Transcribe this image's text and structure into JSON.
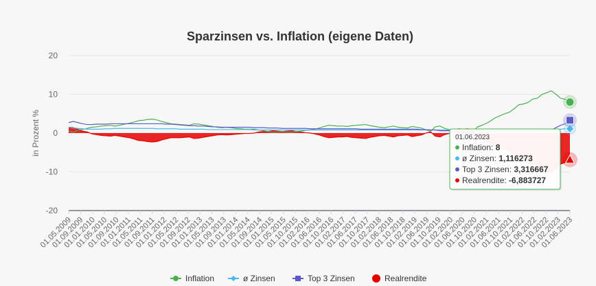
{
  "chart_data": {
    "type": "line",
    "title": "Sparzinsen vs. Inflation (eigene Daten)",
    "ylabel": "in Prozent %",
    "ylim": [
      -20,
      20
    ],
    "y_ticks": [
      "20",
      "10",
      "0",
      "-10",
      "-20"
    ],
    "x_tick_labels": [
      "01.05.2009",
      "01.09.2009",
      "01.01.2010",
      "01.05.2010",
      "01.09.2010",
      "01.01.2011",
      "01.05.2011",
      "01.09.2011",
      "01.01.2012",
      "01.05.2012",
      "01.09.2012",
      "01.01.2013",
      "01.05.2013",
      "01.09.2013",
      "01.01.2014",
      "01.05.2014",
      "01.09.2014",
      "01.01.2015",
      "01.05.2015",
      "01.10.2015",
      "01.02.2016",
      "01.06.2016",
      "01.10.2016",
      "01.02.2017",
      "01.06.2017",
      "01.10.2017",
      "01.02.2018",
      "01.06.2018",
      "01.10.2018",
      "01.02.2019",
      "01.06.2019",
      "01.10.2019",
      "01.02.2020",
      "01.06.2020",
      "01.10.2020",
      "01.02.2021",
      "01.06.2021",
      "01.10.2021",
      "01.02.2022",
      "01.06.2022",
      "01.10.2022",
      "01.02.2023",
      "01.06.2023"
    ],
    "grid": true,
    "legend_position": "bottom",
    "series": [
      {
        "name": "Inflation",
        "color": "#4caf50",
        "kind": "line",
        "marker": "circle",
        "values": [
          0.5,
          0.2,
          0.8,
          0.9,
          1.2,
          1.5,
          1.6,
          1.8,
          1.9,
          2.0,
          1.8,
          2.0,
          2.3,
          2.5,
          2.8,
          3.2,
          3.3,
          3.5,
          3.6,
          3.4,
          3.0,
          2.7,
          2.4,
          2.3,
          2.2,
          2.1,
          2.0,
          2.4,
          2.3,
          2.1,
          1.9,
          1.7,
          1.5,
          1.4,
          1.5,
          1.4,
          1.2,
          1.1,
          1.0,
          1.0,
          1.0,
          0.8,
          0.6,
          0.4,
          0.2,
          0.3,
          0.4,
          0.3,
          0.2,
          0.4,
          0.5,
          0.7,
          0.8,
          1.0,
          1.3,
          1.7,
          2.0,
          1.9,
          1.8,
          1.8,
          1.7,
          1.9,
          2.0,
          2.1,
          2.2,
          1.9,
          1.7,
          1.5,
          1.4,
          1.6,
          1.8,
          1.5,
          1.4,
          1.3,
          1.7,
          1.5,
          1.3,
          0.8,
          0.5,
          1.6,
          1.8,
          1.2,
          0.9,
          0.5,
          -0.3,
          -0.2,
          -0.3,
          0.0,
          1.5,
          2.0,
          2.5,
          3.2,
          4.0,
          4.5,
          5.0,
          5.4,
          6.3,
          7.3,
          7.5,
          7.9,
          8.8,
          9.0,
          10.0,
          10.4,
          10.9,
          10.0,
          9.0,
          8.7,
          8.0
        ]
      },
      {
        "name": "ø Zinsen",
        "color": "#4db8f0",
        "kind": "line",
        "marker": "diamond",
        "values": [
          1.5,
          1.3,
          1.2,
          1.1,
          1.0,
          1.0,
          1.0,
          1.0,
          1.1,
          1.1,
          1.2,
          1.2,
          1.2,
          1.2,
          1.2,
          1.2,
          1.2,
          1.2,
          1.2,
          1.1,
          1.1,
          1.1,
          1.1,
          1.1,
          1.0,
          1.0,
          1.0,
          1.0,
          1.0,
          1.0,
          0.9,
          0.9,
          0.9,
          0.9,
          0.9,
          0.9,
          0.9,
          0.9,
          0.9,
          0.9,
          0.8,
          0.8,
          0.8,
          0.8,
          0.8,
          0.8,
          0.8,
          0.8,
          0.8,
          0.8,
          0.8,
          0.8,
          0.8,
          0.8,
          0.8,
          0.8,
          0.8,
          0.8,
          0.8,
          0.8,
          0.8,
          0.8,
          0.8,
          0.8,
          0.8,
          0.8,
          0.8,
          0.8,
          0.8,
          0.8,
          0.8,
          0.8,
          0.8,
          0.8,
          0.8,
          0.8,
          0.8,
          0.8,
          0.8,
          0.8,
          0.8,
          0.8,
          0.8,
          0.8,
          0.8,
          0.8,
          0.8,
          0.8,
          0.8,
          0.8,
          0.8,
          0.8,
          0.8,
          0.8,
          0.8,
          0.8,
          0.8,
          0.8,
          0.8,
          0.8,
          0.8,
          0.8,
          0.8,
          0.8,
          0.8,
          0.9,
          1.0,
          1.1,
          1.116273
        ]
      },
      {
        "name": "Top 3 Zinsen",
        "color": "#5b5bc7",
        "kind": "line",
        "marker": "square",
        "values": [
          2.7,
          3.0,
          2.7,
          2.4,
          2.2,
          2.2,
          2.3,
          2.3,
          2.3,
          2.4,
          2.4,
          2.4,
          2.4,
          2.4,
          2.4,
          2.4,
          2.4,
          2.4,
          2.4,
          2.4,
          2.4,
          2.3,
          2.3,
          2.2,
          2.1,
          2.0,
          1.9,
          1.9,
          1.8,
          1.8,
          1.7,
          1.6,
          1.6,
          1.5,
          1.5,
          1.5,
          1.5,
          1.5,
          1.5,
          1.5,
          1.4,
          1.4,
          1.4,
          1.3,
          1.3,
          1.3,
          1.2,
          1.2,
          1.2,
          1.2,
          1.2,
          1.2,
          1.1,
          1.1,
          1.1,
          1.1,
          1.1,
          1.1,
          1.1,
          1.1,
          1.1,
          1.1,
          1.1,
          1.0,
          1.0,
          1.0,
          1.0,
          1.0,
          1.0,
          1.0,
          1.0,
          1.0,
          1.0,
          1.0,
          1.0,
          1.0,
          0.9,
          0.9,
          0.8,
          0.8,
          0.6,
          0.6,
          0.6,
          0.6,
          0.6,
          0.6,
          0.6,
          0.6,
          0.6,
          0.6,
          0.5,
          0.5,
          0.5,
          0.5,
          0.5,
          0.5,
          0.5,
          0.5,
          0.5,
          0.5,
          0.5,
          0.5,
          0.6,
          0.6,
          0.8,
          1.4,
          2.0,
          2.4,
          3.316667
        ]
      },
      {
        "name": "Realrendite",
        "color": "#e60000",
        "kind": "area",
        "marker": "circle-big",
        "values": [
          1.5,
          1.4,
          1.0,
          0.5,
          0.3,
          -0.2,
          -0.4,
          -0.6,
          -0.7,
          -0.8,
          -0.6,
          -0.8,
          -1.0,
          -1.2,
          -1.5,
          -1.9,
          -2.0,
          -2.2,
          -2.3,
          -2.2,
          -1.8,
          -1.5,
          -1.2,
          -1.2,
          -1.2,
          -1.1,
          -1.0,
          -1.4,
          -1.3,
          -1.1,
          -0.9,
          -0.7,
          -0.5,
          -0.4,
          -0.5,
          -0.4,
          -0.3,
          -0.2,
          -0.1,
          -0.1,
          0.0,
          0.3,
          0.4,
          0.4,
          0.6,
          0.5,
          0.4,
          0.5,
          0.6,
          0.4,
          0.3,
          0.1,
          0.0,
          -0.2,
          -0.5,
          -0.9,
          -1.2,
          -1.1,
          -1.0,
          -1.0,
          -0.9,
          -1.1,
          -1.2,
          -1.3,
          -1.4,
          -1.1,
          -0.9,
          -0.7,
          -0.6,
          -0.8,
          -1.0,
          -0.7,
          -0.6,
          -0.5,
          -0.9,
          -0.7,
          -0.5,
          0.0,
          0.3,
          -0.8,
          -1.0,
          -0.4,
          -0.1,
          0.3,
          1.1,
          1.0,
          1.1,
          0.8,
          -0.7,
          -1.2,
          -1.7,
          -2.4,
          -3.2,
          -3.7,
          -4.2,
          -4.6,
          -5.5,
          -6.5,
          -6.7,
          -7.1,
          -8.0,
          -8.2,
          -9.2,
          -9.6,
          -10.1,
          -9.2,
          -8.0,
          -7.6,
          -6.883727
        ]
      }
    ],
    "tooltip": {
      "date": "01.06.2023",
      "rows": [
        {
          "series": "Inflation",
          "label": "Inflation: ",
          "value": "8",
          "color": "#4caf50"
        },
        {
          "series": "ø Zinsen",
          "label": "ø Zinsen: ",
          "value": "1,116273",
          "color": "#4db8f0"
        },
        {
          "series": "Top 3 Zinsen",
          "label": "Top 3 Zinsen: ",
          "value": "3,316667",
          "color": "#5b5bc7"
        },
        {
          "series": "Realrendite",
          "label": "Realrendite: ",
          "value": "-6,883727",
          "color": "#e60000"
        }
      ]
    }
  }
}
